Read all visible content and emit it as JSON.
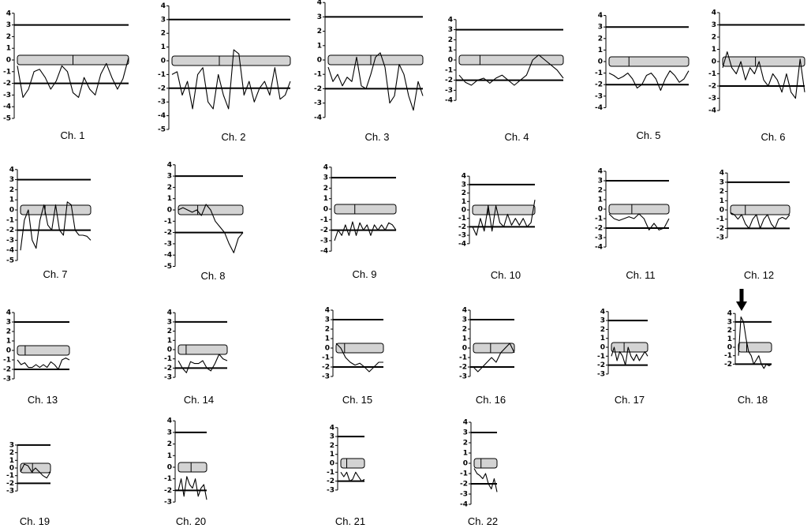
{
  "chart_data": [
    {
      "type": "line",
      "title": "Ch. 1",
      "ylim": [
        -5,
        4
      ],
      "yticks": [
        4,
        3,
        2,
        1,
        0,
        -1,
        -2,
        -3,
        -4,
        -5
      ],
      "reference_lines": [
        3,
        -2
      ],
      "centromere": 0.5,
      "values": [
        -0.5,
        -3.2,
        -2.5,
        -1,
        -0.8,
        -1.5,
        -2.5,
        -1.8,
        -0.5,
        -1,
        -2.8,
        -3.2,
        -1.5,
        -2.5,
        -3,
        -1.2,
        -0.3,
        -1.5,
        -2.5,
        -1.6,
        0.2
      ]
    },
    {
      "type": "line",
      "title": "Ch. 2",
      "ylim": [
        -5,
        4
      ],
      "yticks": [
        4,
        3,
        2,
        1,
        0,
        -1,
        -2,
        -3,
        -4,
        -5
      ],
      "reference_lines": [
        3,
        -2
      ],
      "centromere": 0.4,
      "values": [
        -1,
        -0.8,
        -2.5,
        -1.5,
        -3.5,
        -1,
        -0.5,
        -3,
        -3.5,
        -1,
        -2.5,
        -3.5,
        0.8,
        0.5,
        -2.5,
        -1.5,
        -3,
        -2,
        -1.5,
        -2.5,
        -0.5,
        -2.8,
        -2.5,
        -1.5
      ]
    },
    {
      "type": "line",
      "title": "Ch. 3",
      "ylim": [
        -4,
        4
      ],
      "yticks": [
        4,
        3,
        2,
        1,
        0,
        -1,
        -2,
        -3,
        -4
      ],
      "reference_lines": [
        3,
        -2
      ],
      "centromere": 0.45,
      "values": [
        -0.5,
        -1.5,
        -1,
        -1.8,
        -1.2,
        -1.5,
        0.2,
        -1.8,
        -2,
        -1,
        0.2,
        0.5,
        -0.5,
        -3,
        -2.5,
        -0.3,
        -1,
        -2.5,
        -3.5,
        -1.5,
        -2.5
      ]
    },
    {
      "type": "line",
      "title": "Ch. 4",
      "ylim": [
        -4,
        4
      ],
      "yticks": [
        4,
        3,
        2,
        1,
        0,
        -1,
        -2,
        -3,
        -4
      ],
      "reference_lines": [
        3,
        -2
      ],
      "centromere": 0.2,
      "values": [
        -1.5,
        -2.2,
        -2.5,
        -2,
        -1.8,
        -2.3,
        -1.8,
        -1.5,
        -2,
        -2.5,
        -2,
        -1.5,
        0,
        0.5,
        0,
        -0.5,
        -1,
        -1.8
      ]
    },
    {
      "type": "line",
      "title": "Ch. 5",
      "ylim": [
        -4,
        4
      ],
      "yticks": [
        4,
        3,
        2,
        1,
        0,
        -1,
        -2,
        -3,
        -4
      ],
      "reference_lines": [
        3,
        -2
      ],
      "centromere": 0.25,
      "values": [
        -1,
        -1.2,
        -1.5,
        -1.3,
        -1,
        -1.5,
        -2.3,
        -2,
        -1.2,
        -1,
        -1.5,
        -2.5,
        -1.5,
        -0.8,
        -1.2,
        -1.8,
        -1.5,
        -0.8
      ]
    },
    {
      "type": "line",
      "title": "Ch. 6",
      "ylim": [
        -4,
        4
      ],
      "yticks": [
        4,
        3,
        2,
        1,
        0,
        -1,
        -2,
        -3,
        -4
      ],
      "reference_lines": [
        3,
        -2
      ],
      "centromere": 0.4,
      "values": [
        -0.5,
        0.8,
        -0.5,
        -1,
        0,
        -1.5,
        -0.5,
        -1,
        0,
        -1.5,
        -2,
        -1,
        -1.5,
        -2.5,
        -1,
        -2.5,
        -3,
        0.2,
        -2.5
      ]
    },
    {
      "type": "line",
      "title": "Ch. 7",
      "ylim": [
        -5,
        4
      ],
      "yticks": [
        4,
        3,
        2,
        1,
        0,
        -1,
        -2,
        -3,
        -4,
        -5
      ],
      "reference_lines": [
        3,
        -2
      ],
      "centromere": 0.35,
      "values": [
        -4,
        -1,
        0,
        -3,
        -3.8,
        -1,
        0.5,
        -1.5,
        -2,
        0.5,
        -2,
        -2.5,
        0.8,
        0.5,
        -2,
        -2.5,
        -2.5,
        -2.6,
        -3
      ]
    },
    {
      "type": "line",
      "title": "Ch. 8",
      "ylim": [
        -5,
        4
      ],
      "yticks": [
        4,
        3,
        2,
        1,
        0,
        -1,
        -2,
        -3,
        -4,
        -5
      ],
      "reference_lines": [
        3,
        -2
      ],
      "centromere": 0.3,
      "values": [
        0,
        0.2,
        0,
        -0.2,
        0,
        -0.5,
        0.5,
        0,
        -1,
        -1.5,
        -2,
        -3,
        -3.8,
        -2.5,
        -2
      ]
    },
    {
      "type": "line",
      "title": "Ch. 9",
      "ylim": [
        -4,
        4
      ],
      "yticks": [
        4,
        3,
        2,
        1,
        0,
        -1,
        -2,
        -3,
        -4
      ],
      "reference_lines": [
        3,
        -2
      ],
      "centromere": 0.33,
      "values": [
        -3,
        -2,
        -2.5,
        -1.5,
        -2.5,
        -1.2,
        -2.5,
        -1.3,
        -2,
        -1.5,
        -2.5,
        -1.5,
        -2,
        -1.5,
        -2,
        -1.3,
        -1.5,
        -2
      ]
    },
    {
      "type": "line",
      "title": "Ch. 10",
      "ylim": [
        -4,
        4
      ],
      "yticks": [
        4,
        3,
        2,
        1,
        0,
        -1,
        -2,
        -3,
        -4
      ],
      "reference_lines": [
        3,
        -2
      ],
      "centromere": 0.25,
      "values": [
        -2,
        -3,
        -1,
        -2.5,
        0.5,
        -2.5,
        0.5,
        -1.5,
        -2,
        -0.5,
        -1.8,
        -1,
        -1.8,
        -1,
        -2,
        -1.5,
        1.2
      ]
    },
    {
      "type": "line",
      "title": "Ch. 11",
      "ylim": [
        -4,
        4
      ],
      "yticks": [
        4,
        3,
        2,
        1,
        0,
        -1,
        -2,
        -3,
        -4
      ],
      "reference_lines": [
        3,
        -2
      ],
      "centromere": 0.38,
      "values": [
        -0.5,
        -1,
        -1.2,
        -1,
        -0.8,
        -1,
        -0.5,
        -1,
        -2.2,
        -1.5,
        -2.2,
        -2,
        -1
      ]
    },
    {
      "type": "line",
      "title": "Ch. 12",
      "ylim": [
        -3,
        4
      ],
      "yticks": [
        4,
        3,
        2,
        1,
        0,
        -1,
        -2,
        -3
      ],
      "reference_lines": [
        3,
        -2
      ],
      "centromere": 0.25,
      "values": [
        -0.3,
        -0.5,
        -1,
        -0.5,
        -1.5,
        -2,
        -1,
        -0.5,
        -2,
        -1,
        -0.5,
        -1.5,
        -2,
        -1,
        -0.8,
        -1,
        -0.5
      ]
    },
    {
      "type": "line",
      "title": "Ch. 13",
      "ylim": [
        -3,
        4
      ],
      "yticks": [
        4,
        3,
        2,
        1,
        0,
        -1,
        -2,
        -3
      ],
      "reference_lines": [
        3,
        -2
      ],
      "centromere": 0.15,
      "values": [
        -1,
        -1.5,
        -1.3,
        -1.8,
        -1.8,
        -1.5,
        -1.8,
        -1.5,
        -1.8,
        -1.2,
        -1.5,
        -2,
        -1,
        -0.8,
        -1
      ]
    },
    {
      "type": "line",
      "title": "Ch. 14",
      "ylim": [
        -3,
        4
      ],
      "yticks": [
        4,
        3,
        2,
        1,
        0,
        -1,
        -2,
        -3
      ],
      "reference_lines": [
        3,
        -2
      ],
      "centromere": 0.16,
      "values": [
        -1.2,
        -2,
        -2.5,
        -1.3,
        -1.5,
        -1.5,
        -1.2,
        -2,
        -2.3,
        -1.5,
        -0.5,
        -1,
        -1.2
      ]
    },
    {
      "type": "line",
      "title": "Ch. 15",
      "ylim": [
        -3,
        4
      ],
      "yticks": [
        4,
        3,
        2,
        1,
        0,
        -1,
        -2,
        -3
      ],
      "reference_lines": [
        3,
        -2
      ],
      "centromere": 0.18,
      "values": [
        0.5,
        0,
        -1,
        -1.5,
        -1.8,
        -1.6,
        -2,
        -2.5,
        -2,
        -1.5,
        -1.5
      ]
    },
    {
      "type": "line",
      "title": "Ch. 16",
      "ylim": [
        -3,
        4
      ],
      "yticks": [
        4,
        3,
        2,
        1,
        0,
        -1,
        -2,
        -3
      ],
      "reference_lines": [
        3,
        -2
      ],
      "centromere": 0.42,
      "values": [
        -2,
        -2.5,
        -2,
        -1.5,
        -1,
        -1.5,
        -0.5,
        0,
        0.5,
        -0.5
      ]
    },
    {
      "type": "line",
      "title": "Ch. 17",
      "ylim": [
        -3,
        4
      ],
      "yticks": [
        4,
        3,
        2,
        1,
        0,
        -1,
        -2,
        -3
      ],
      "reference_lines": [
        3,
        -2
      ],
      "centromere": 0.35,
      "values": [
        -1,
        0,
        -1.5,
        -0.5,
        -1,
        -2,
        0,
        -1,
        -1.5,
        -0.8,
        -1.5,
        -1,
        -0.5,
        -1
      ]
    },
    {
      "type": "line",
      "title": "Ch. 18",
      "ylim": [
        -2,
        4
      ],
      "yticks": [
        4,
        3,
        2,
        1,
        0,
        -1,
        -2
      ],
      "reference_lines": [
        3,
        -2
      ],
      "centromere": 0.25,
      "values": [
        -1,
        3.6,
        3,
        1,
        -0.5,
        -1,
        -2,
        -1.5,
        -1,
        -2,
        -2.5,
        -2,
        -2.2,
        -2
      ]
    },
    {
      "type": "line",
      "title": "Ch. 19",
      "ylim": [
        -3,
        3
      ],
      "yticks": [
        3,
        2,
        1,
        0,
        -1,
        -2,
        -3
      ],
      "reference_lines": [
        3,
        -2
      ],
      "centromere": 0.4,
      "values": [
        -0.5,
        0.5,
        0.3,
        -0.5,
        0,
        -0.5,
        -1,
        -1.3,
        -0.5
      ]
    },
    {
      "type": "line",
      "title": "Ch. 20",
      "ylim": [
        -3,
        4
      ],
      "yticks": [
        4,
        3,
        2,
        1,
        0,
        -1,
        -2,
        -3
      ],
      "reference_lines": [
        3,
        -2
      ],
      "centromere": 0.45,
      "values": [
        -2,
        -1,
        -2.5,
        -0.8,
        -1.5,
        -1.8,
        -1,
        -2.5,
        -1.8,
        -1.5,
        -2.8
      ]
    },
    {
      "type": "line",
      "title": "Ch. 21",
      "ylim": [
        -3,
        4
      ],
      "yticks": [
        4,
        3,
        2,
        1,
        0,
        -1,
        -2,
        -3
      ],
      "reference_lines": [
        3,
        -2
      ],
      "centromere": 0.25,
      "values": [
        -1,
        -1.5,
        -1,
        -2,
        -1.8,
        -1,
        -1.5,
        -2,
        -1.8
      ]
    },
    {
      "type": "line",
      "title": "Ch. 22",
      "ylim": [
        -4,
        4
      ],
      "yticks": [
        4,
        3,
        2,
        1,
        0,
        -1,
        -2,
        -3,
        -4
      ],
      "reference_lines": [
        3,
        -2
      ],
      "centromere": 0.3,
      "values": [
        -0.5,
        -1,
        -1.2,
        -1.5,
        -1,
        -2,
        -2.5,
        -1.5,
        -2.8
      ]
    }
  ]
}
